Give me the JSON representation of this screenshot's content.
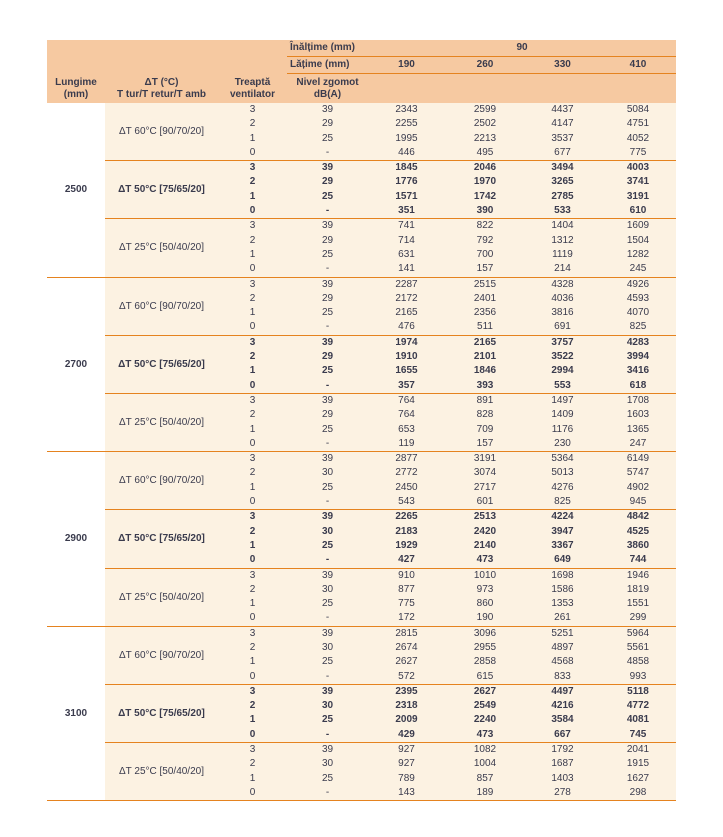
{
  "colors": {
    "header_bg": "#f6c9a1",
    "body_bg": "#fcf2e2",
    "accent_line": "#e5831f",
    "text": "#3a3b4d",
    "page_bg": "#ffffff"
  },
  "table": {
    "header": {
      "inaltime": {
        "label": "Înălțime (mm)",
        "value": "90"
      },
      "latime": {
        "label": "Lățime (mm)",
        "values": [
          "190",
          "260",
          "330",
          "410"
        ]
      },
      "columns": {
        "lungime": {
          "line1": "Lungime",
          "line2": "(mm)"
        },
        "dt": {
          "line1": "ΔT (°C)",
          "line2": "T tur/T retur/T amb"
        },
        "treapta": {
          "line1": "Treaptă",
          "line2": "ventilator"
        },
        "zgomot": {
          "line1": "Nivel zgomot",
          "line2": "dB(A)"
        }
      }
    },
    "groups": [
      {
        "length": "2500",
        "blocks": [
          {
            "label": "ΔT 60°C [90/70/20]",
            "bold": false,
            "rows": [
              {
                "fan": "3",
                "noise": "39",
                "values": [
                  "2343",
                  "2599",
                  "4437",
                  "5084"
                ]
              },
              {
                "fan": "2",
                "noise": "29",
                "values": [
                  "2255",
                  "2502",
                  "4147",
                  "4751"
                ]
              },
              {
                "fan": "1",
                "noise": "25",
                "values": [
                  "1995",
                  "2213",
                  "3537",
                  "4052"
                ]
              },
              {
                "fan": "0",
                "noise": "-",
                "values": [
                  "446",
                  "495",
                  "677",
                  "775"
                ]
              }
            ]
          },
          {
            "label": "ΔT 50°C [75/65/20]",
            "bold": true,
            "rows": [
              {
                "fan": "3",
                "noise": "39",
                "values": [
                  "1845",
                  "2046",
                  "3494",
                  "4003"
                ]
              },
              {
                "fan": "2",
                "noise": "29",
                "values": [
                  "1776",
                  "1970",
                  "3265",
                  "3741"
                ]
              },
              {
                "fan": "1",
                "noise": "25",
                "values": [
                  "1571",
                  "1742",
                  "2785",
                  "3191"
                ]
              },
              {
                "fan": "0",
                "noise": "-",
                "values": [
                  "351",
                  "390",
                  "533",
                  "610"
                ]
              }
            ]
          },
          {
            "label": "ΔT 25°C [50/40/20]",
            "bold": false,
            "rows": [
              {
                "fan": "3",
                "noise": "39",
                "values": [
                  "741",
                  "822",
                  "1404",
                  "1609"
                ]
              },
              {
                "fan": "2",
                "noise": "29",
                "values": [
                  "714",
                  "792",
                  "1312",
                  "1504"
                ]
              },
              {
                "fan": "1",
                "noise": "25",
                "values": [
                  "631",
                  "700",
                  "1119",
                  "1282"
                ]
              },
              {
                "fan": "0",
                "noise": "-",
                "values": [
                  "141",
                  "157",
                  "214",
                  "245"
                ]
              }
            ]
          }
        ]
      },
      {
        "length": "2700",
        "blocks": [
          {
            "label": "ΔT 60°C [90/70/20]",
            "bold": false,
            "rows": [
              {
                "fan": "3",
                "noise": "39",
                "values": [
                  "2287",
                  "2515",
                  "4328",
                  "4926"
                ]
              },
              {
                "fan": "2",
                "noise": "29",
                "values": [
                  "2172",
                  "2401",
                  "4036",
                  "4593"
                ]
              },
              {
                "fan": "1",
                "noise": "25",
                "values": [
                  "2165",
                  "2356",
                  "3816",
                  "4070"
                ]
              },
              {
                "fan": "0",
                "noise": "-",
                "values": [
                  "476",
                  "511",
                  "691",
                  "825"
                ]
              }
            ]
          },
          {
            "label": "ΔT 50°C [75/65/20]",
            "bold": true,
            "rows": [
              {
                "fan": "3",
                "noise": "39",
                "values": [
                  "1974",
                  "2165",
                  "3757",
                  "4283"
                ]
              },
              {
                "fan": "2",
                "noise": "29",
                "values": [
                  "1910",
                  "2101",
                  "3522",
                  "3994"
                ]
              },
              {
                "fan": "1",
                "noise": "25",
                "values": [
                  "1655",
                  "1846",
                  "2994",
                  "3416"
                ]
              },
              {
                "fan": "0",
                "noise": "-",
                "values": [
                  "357",
                  "393",
                  "553",
                  "618"
                ]
              }
            ]
          },
          {
            "label": "ΔT 25°C [50/40/20]",
            "bold": false,
            "rows": [
              {
                "fan": "3",
                "noise": "39",
                "values": [
                  "764",
                  "891",
                  "1497",
                  "1708"
                ]
              },
              {
                "fan": "2",
                "noise": "29",
                "values": [
                  "764",
                  "828",
                  "1409",
                  "1603"
                ]
              },
              {
                "fan": "1",
                "noise": "25",
                "values": [
                  "653",
                  "709",
                  "1176",
                  "1365"
                ]
              },
              {
                "fan": "0",
                "noise": "-",
                "values": [
                  "119",
                  "157",
                  "230",
                  "247"
                ]
              }
            ]
          }
        ]
      },
      {
        "length": "2900",
        "blocks": [
          {
            "label": "ΔT 60°C [90/70/20]",
            "bold": false,
            "rows": [
              {
                "fan": "3",
                "noise": "39",
                "values": [
                  "2877",
                  "3191",
                  "5364",
                  "6149"
                ]
              },
              {
                "fan": "2",
                "noise": "30",
                "values": [
                  "2772",
                  "3074",
                  "5013",
                  "5747"
                ]
              },
              {
                "fan": "1",
                "noise": "25",
                "values": [
                  "2450",
                  "2717",
                  "4276",
                  "4902"
                ]
              },
              {
                "fan": "0",
                "noise": "-",
                "values": [
                  "543",
                  "601",
                  "825",
                  "945"
                ]
              }
            ]
          },
          {
            "label": "ΔT 50°C [75/65/20]",
            "bold": true,
            "rows": [
              {
                "fan": "3",
                "noise": "39",
                "values": [
                  "2265",
                  "2513",
                  "4224",
                  "4842"
                ]
              },
              {
                "fan": "2",
                "noise": "30",
                "values": [
                  "2183",
                  "2420",
                  "3947",
                  "4525"
                ]
              },
              {
                "fan": "1",
                "noise": "25",
                "values": [
                  "1929",
                  "2140",
                  "3367",
                  "3860"
                ]
              },
              {
                "fan": "0",
                "noise": "-",
                "values": [
                  "427",
                  "473",
                  "649",
                  "744"
                ]
              }
            ]
          },
          {
            "label": "ΔT 25°C [50/40/20]",
            "bold": false,
            "rows": [
              {
                "fan": "3",
                "noise": "39",
                "values": [
                  "910",
                  "1010",
                  "1698",
                  "1946"
                ]
              },
              {
                "fan": "2",
                "noise": "30",
                "values": [
                  "877",
                  "973",
                  "1586",
                  "1819"
                ]
              },
              {
                "fan": "1",
                "noise": "25",
                "values": [
                  "775",
                  "860",
                  "1353",
                  "1551"
                ]
              },
              {
                "fan": "0",
                "noise": "-",
                "values": [
                  "172",
                  "190",
                  "261",
                  "299"
                ]
              }
            ]
          }
        ]
      },
      {
        "length": "3100",
        "blocks": [
          {
            "label": "ΔT 60°C [90/70/20]",
            "bold": false,
            "rows": [
              {
                "fan": "3",
                "noise": "39",
                "values": [
                  "2815",
                  "3096",
                  "5251",
                  "5964"
                ]
              },
              {
                "fan": "2",
                "noise": "30",
                "values": [
                  "2674",
                  "2955",
                  "4897",
                  "5561"
                ]
              },
              {
                "fan": "1",
                "noise": "25",
                "values": [
                  "2627",
                  "2858",
                  "4568",
                  "4858"
                ]
              },
              {
                "fan": "0",
                "noise": "-",
                "values": [
                  "572",
                  "615",
                  "833",
                  "993"
                ]
              }
            ]
          },
          {
            "label": "ΔT 50°C [75/65/20]",
            "bold": true,
            "rows": [
              {
                "fan": "3",
                "noise": "39",
                "values": [
                  "2395",
                  "2627",
                  "4497",
                  "5118"
                ]
              },
              {
                "fan": "2",
                "noise": "30",
                "values": [
                  "2318",
                  "2549",
                  "4216",
                  "4772"
                ]
              },
              {
                "fan": "1",
                "noise": "25",
                "values": [
                  "2009",
                  "2240",
                  "3584",
                  "4081"
                ]
              },
              {
                "fan": "0",
                "noise": "-",
                "values": [
                  "429",
                  "473",
                  "667",
                  "745"
                ]
              }
            ]
          },
          {
            "label": "ΔT 25°C [50/40/20]",
            "bold": false,
            "rows": [
              {
                "fan": "3",
                "noise": "39",
                "values": [
                  "927",
                  "1082",
                  "1792",
                  "2041"
                ]
              },
              {
                "fan": "2",
                "noise": "30",
                "values": [
                  "927",
                  "1004",
                  "1687",
                  "1915"
                ]
              },
              {
                "fan": "1",
                "noise": "25",
                "values": [
                  "789",
                  "857",
                  "1403",
                  "1627"
                ]
              },
              {
                "fan": "0",
                "noise": "-",
                "values": [
                  "143",
                  "189",
                  "278",
                  "298"
                ]
              }
            ]
          }
        ]
      }
    ]
  }
}
